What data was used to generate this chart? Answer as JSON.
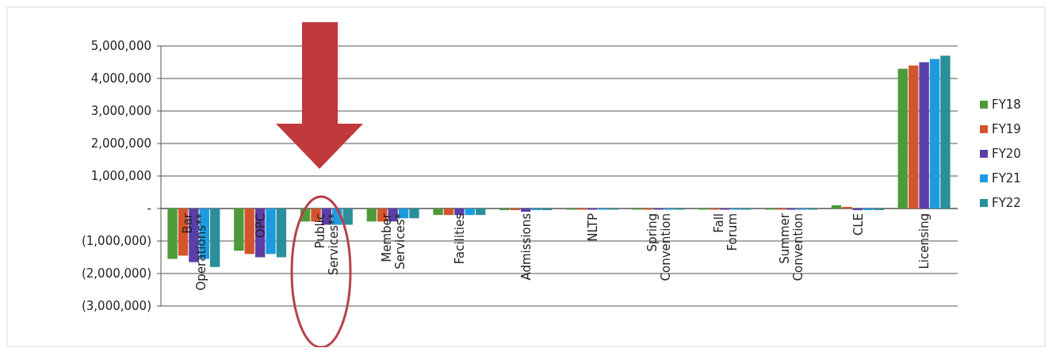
{
  "chart_data": {
    "type": "bar",
    "categories": [
      "Bar Operations**",
      "OPC",
      "Public Services**",
      "Member Services*",
      "Facilities",
      "Admissions",
      "NLTP",
      "Spring Convention",
      "Fall Forum",
      "Summer Convention",
      "CLE",
      "Licensing"
    ],
    "series": [
      {
        "name": "FY18",
        "color": "#4e9a3a",
        "values": [
          -1550000,
          -1300000,
          -400000,
          -400000,
          -200000,
          -50000,
          -30000,
          -20000,
          0,
          -20000,
          100000,
          4300000
        ]
      },
      {
        "name": "FY19",
        "color": "#d4552b",
        "values": [
          -1450000,
          -1400000,
          -400000,
          -400000,
          -200000,
          -50000,
          -30000,
          -20000,
          0,
          -20000,
          50000,
          4400000
        ]
      },
      {
        "name": "FY20",
        "color": "#5b3fa8",
        "values": [
          -1650000,
          -1500000,
          -500000,
          -400000,
          -200000,
          -100000,
          -30000,
          -20000,
          0,
          -20000,
          -50000,
          4500000
        ]
      },
      {
        "name": "FY21",
        "color": "#1e9be0",
        "values": [
          -1550000,
          -1400000,
          -500000,
          -300000,
          -200000,
          -50000,
          -30000,
          -20000,
          0,
          -20000,
          -50000,
          4600000
        ]
      },
      {
        "name": "FY22",
        "color": "#2a8f9a",
        "values": [
          -1800000,
          -1500000,
          -500000,
          -300000,
          -200000,
          -50000,
          -30000,
          -20000,
          0,
          -20000,
          -50000,
          4700000
        ]
      }
    ],
    "ylim": [
      -3000000,
      5000000
    ],
    "yticks": [
      {
        "value": 5000000,
        "label": "5,000,000"
      },
      {
        "value": 4000000,
        "label": "4,000,000"
      },
      {
        "value": 3000000,
        "label": "3,000,000"
      },
      {
        "value": 2000000,
        "label": "2,000,000"
      },
      {
        "value": 1000000,
        "label": "1,000,000"
      },
      {
        "value": 0,
        "label": "-"
      },
      {
        "value": -1000000,
        "label": "(1,000,000)"
      },
      {
        "value": -2000000,
        "label": "(2,000,000)"
      },
      {
        "value": -3000000,
        "label": "(3,000,000)"
      }
    ],
    "grid": "y",
    "legend": "right"
  }
}
